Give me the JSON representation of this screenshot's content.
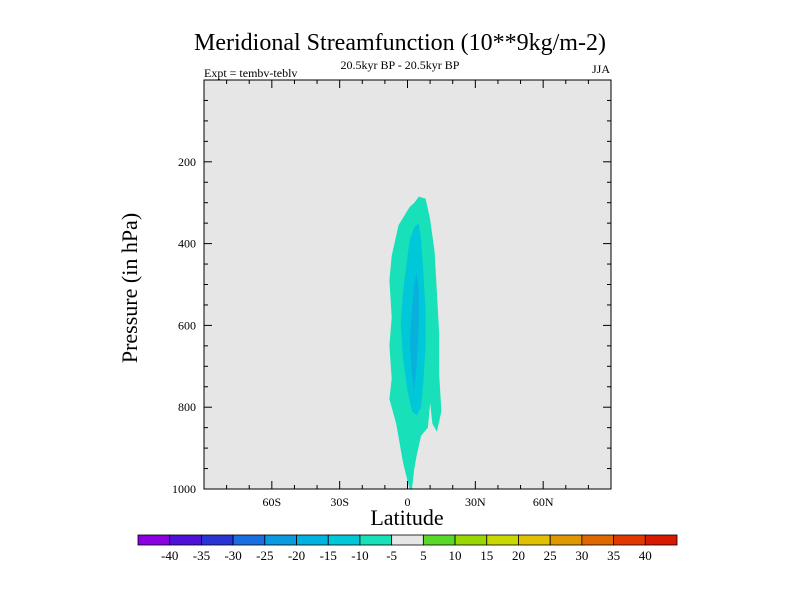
{
  "chart_data": {
    "type": "contour",
    "title": "Meridional Streamfunction (10**9kg/m-2)",
    "subtitle": "20.5kyr BP - 20.5kyr BP",
    "left_label": "Expt = tembv-teblv",
    "right_label": "JJA",
    "xlabel": "Latitude",
    "ylabel": "Pressure (in hPa)",
    "xlim": [
      -90,
      90
    ],
    "ylim": [
      0,
      1000
    ],
    "y_inverted": true,
    "x_ticks": [
      {
        "value": -60,
        "label": "60S"
      },
      {
        "value": -30,
        "label": "30S"
      },
      {
        "value": 0,
        "label": "0"
      },
      {
        "value": 30,
        "label": "30N"
      },
      {
        "value": 60,
        "label": "60N"
      }
    ],
    "y_ticks": [
      {
        "value": 200,
        "label": "200"
      },
      {
        "value": 400,
        "label": "400"
      },
      {
        "value": 600,
        "label": "600"
      },
      {
        "value": 800,
        "label": "800"
      },
      {
        "value": 1000,
        "label": "1000"
      }
    ],
    "background_color": "#e6e6e6",
    "contour_levels": [
      -40,
      -35,
      -30,
      -25,
      -20,
      -15,
      -10,
      -5,
      5,
      10,
      15,
      20,
      25,
      30,
      35,
      40
    ],
    "colorbar_colors": [
      "#8a00e0",
      "#5010d8",
      "#2a34d4",
      "#1a6ee0",
      "#0a9ae0",
      "#00b2e0",
      "#00c8d8",
      "#18e0b8",
      "#e6e6e6",
      "#58d828",
      "#98d800",
      "#c8d800",
      "#e0c000",
      "#e09800",
      "#e06800",
      "#e03800",
      "#d81800"
    ],
    "regions": [
      {
        "level": "-5 to -10",
        "color": "#18e0b8",
        "polygon": [
          [
            1,
            1027
          ],
          [
            0,
            980
          ],
          [
            -2,
            935
          ],
          [
            -5,
            840
          ],
          [
            -8,
            780
          ],
          [
            -7,
            730
          ],
          [
            -8,
            650
          ],
          [
            -7,
            580
          ],
          [
            -8,
            490
          ],
          [
            -7,
            430
          ],
          [
            -4,
            355
          ],
          [
            1,
            310
          ],
          [
            3,
            300
          ],
          [
            5,
            285
          ],
          [
            8,
            290
          ],
          [
            10,
            340
          ],
          [
            12,
            420
          ],
          [
            13,
            520
          ],
          [
            14,
            620
          ],
          [
            14,
            720
          ],
          [
            15,
            810
          ],
          [
            13,
            860
          ],
          [
            11,
            840
          ],
          [
            10,
            790
          ],
          [
            9,
            850
          ],
          [
            6,
            870
          ],
          [
            4,
            920
          ],
          [
            3,
            950
          ],
          [
            2,
            1030
          ]
        ]
      },
      {
        "level": "-10 to -15",
        "color": "#00c8d8",
        "polygon": [
          [
            -2,
            520
          ],
          [
            0,
            430
          ],
          [
            1,
            390
          ],
          [
            3,
            360
          ],
          [
            5,
            350
          ],
          [
            6,
            390
          ],
          [
            7,
            470
          ],
          [
            8,
            560
          ],
          [
            8,
            650
          ],
          [
            7,
            740
          ],
          [
            6,
            800
          ],
          [
            4,
            820
          ],
          [
            2,
            810
          ],
          [
            0,
            760
          ],
          [
            -2,
            680
          ],
          [
            -3,
            600
          ]
        ]
      },
      {
        "level": "-15 to -20",
        "color": "#0ab0dc",
        "polygon": [
          [
            2,
            560
          ],
          [
            3,
            500
          ],
          [
            4,
            470
          ],
          [
            5,
            510
          ],
          [
            5,
            600
          ],
          [
            4,
            700
          ],
          [
            3,
            760
          ],
          [
            2,
            720
          ],
          [
            1,
            640
          ]
        ]
      }
    ],
    "colorbar_labels": [
      "-40",
      "-35",
      "-30",
      "-25",
      "-20",
      "-15",
      "-10",
      "-5",
      "5",
      "10",
      "15",
      "20",
      "25",
      "30",
      "35",
      "40"
    ]
  }
}
